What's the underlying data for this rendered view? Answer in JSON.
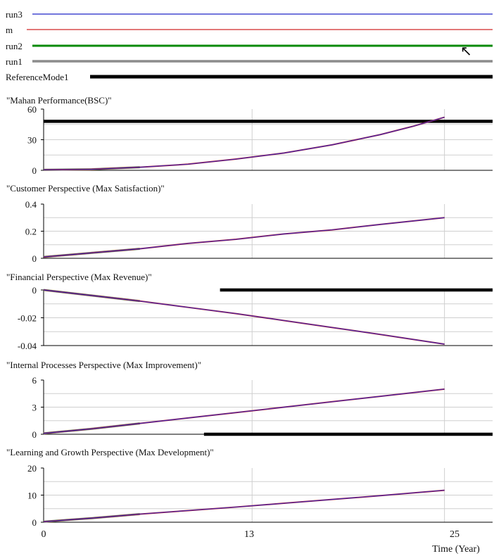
{
  "legend": [
    {
      "name": "run3",
      "color": "#1f24c8",
      "weight": "thin"
    },
    {
      "name": "m",
      "color": "#d02828",
      "weight": "thin"
    },
    {
      "name": "run2",
      "color": "#0a8a0a",
      "weight": "medium"
    },
    {
      "name": "run1",
      "color": "#8c8c8c",
      "weight": "medium"
    },
    {
      "name": "ReferenceMode1",
      "color": "#000000",
      "weight": "thick"
    }
  ],
  "cursor_icon": "pointer-arrow-icon",
  "chart_data": [
    {
      "type": "line",
      "title": "\"Mahan Performance(BSC)\"",
      "ylim": [
        0,
        60
      ],
      "yticks": [
        "60",
        "30",
        "0"
      ],
      "x": [
        0,
        3,
        6,
        9,
        12,
        15,
        18,
        21,
        23,
        25
      ],
      "sim": [
        0.5,
        1,
        3,
        6,
        11,
        17,
        25,
        35,
        43,
        52
      ],
      "reference": [
        48,
        48
      ],
      "reference_x": [
        0,
        28
      ]
    },
    {
      "type": "line",
      "title": "\"Customer Perspective (Max Satisfaction)\"",
      "ylim": [
        0,
        0.4
      ],
      "yticks": [
        "0.4",
        "0.2",
        "0"
      ],
      "x": [
        0,
        3,
        6,
        9,
        12,
        15,
        18,
        21,
        25
      ],
      "sim": [
        0.01,
        0.04,
        0.07,
        0.11,
        0.14,
        0.18,
        0.21,
        0.25,
        0.3
      ],
      "reference": null,
      "reference_x": null
    },
    {
      "type": "line",
      "title": "\"Financial Perspective (Max Revenue)\"",
      "ylim": [
        -0.04,
        0
      ],
      "yticks": [
        "0",
        "-0.02",
        "-0.04"
      ],
      "x": [
        0,
        3,
        6,
        9,
        12,
        15,
        18,
        21,
        25
      ],
      "sim": [
        0,
        -0.004,
        -0.008,
        -0.0125,
        -0.017,
        -0.022,
        -0.027,
        -0.032,
        -0.039
      ],
      "reference": [
        0,
        0
      ],
      "reference_x": [
        11,
        28
      ]
    },
    {
      "type": "line",
      "title": "\"Internal Processes Perspective (Max Improvement)\"",
      "ylim": [
        0,
        6
      ],
      "yticks": [
        "6",
        "3",
        "0"
      ],
      "x": [
        0,
        3,
        6,
        9,
        12,
        15,
        18,
        21,
        25
      ],
      "sim": [
        0.1,
        0.6,
        1.2,
        1.8,
        2.4,
        3.0,
        3.6,
        4.2,
        5.0
      ],
      "reference": [
        0,
        0
      ],
      "reference_x": [
        10,
        28
      ]
    },
    {
      "type": "line",
      "title": "\"Learning and Growth Perspective (Max Development)\"",
      "ylim": [
        0,
        20
      ],
      "yticks": [
        "20",
        "10",
        "0"
      ],
      "x": [
        0,
        3,
        6,
        9,
        12,
        15,
        18,
        21,
        25
      ],
      "sim": [
        0.2,
        1.5,
        3,
        4.3,
        5.6,
        7,
        8.4,
        9.8,
        11.8
      ],
      "reference": null,
      "reference_x": null
    }
  ],
  "x_axis": {
    "xlim": [
      0,
      28
    ],
    "ticks": [
      0,
      13,
      25
    ],
    "tick_labels": [
      "0",
      "13",
      "25"
    ],
    "label": "Time (Year)"
  }
}
